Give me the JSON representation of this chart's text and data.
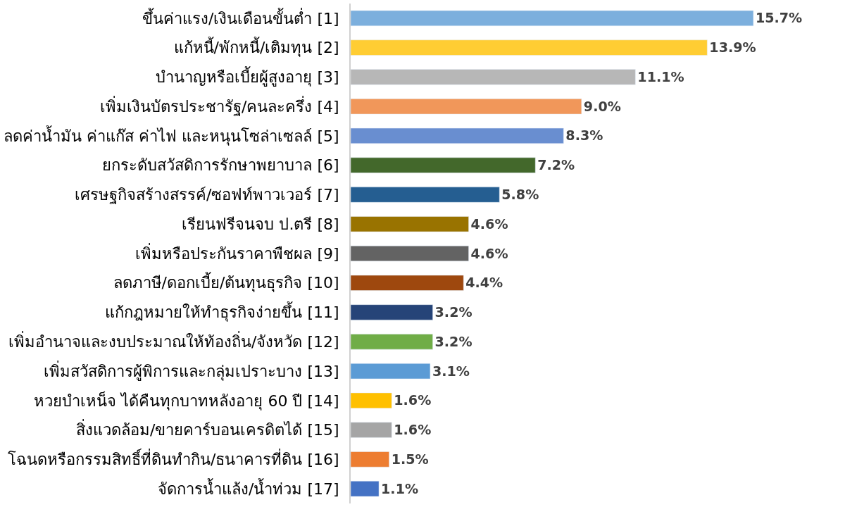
{
  "chart_data": {
    "type": "bar",
    "orientation": "horizontal",
    "tick_labels": "y",
    "legend": false,
    "categories": [
      "ขึ้นค่าแรง/เงินเดือนขั้นต่ำ [1]",
      "แก้หนี้/พักหนี้/เติมทุน [2]",
      "บำนาญหรือเบี้ยผู้สูงอายุ [3]",
      "เพิ่มเงินบัตรประชารัฐ/คนละครึ่ง [4]",
      "ลดค่าน้ำมัน ค่าแก๊ส ค่าไฟ และหนุนโซล่าเซลล์ [5]",
      "ยกระดับสวัสดิการรักษาพยาบาล [6]",
      "เศรษฐกิจสร้างสรรค์/ซอฟท์พาวเวอร์ [7]",
      "เรียนฟรีจนจบ ป.ตรี [8]",
      "เพิ่มหรือประกันราคาพืชผล [9]",
      "ลดภาษี/ดอกเบี้ย/ต้นทุนธุรกิจ [10]",
      "แก้กฎหมายให้ทำธุรกิจง่ายขึ้น [11]",
      "เพิ่มอำนาจและงบประมาณให้ท้องถิ่น/จังหวัด [12]",
      "เพิ่มสวัสดิการผู้พิการและกลุ่มเปราะบาง [13]",
      "หวยบำเหน็จ ได้คืนทุกบาทหลังอายุ 60 ปี [14]",
      "สิ่งแวดล้อม/ขายคาร์บอนเครดิตได้ [15]",
      "โฉนดหรือกรรมสิทธิ์ที่ดินทำกิน/ธนาคารที่ดิน [16]",
      "จัดการน้ำแล้ง/น้ำท่วม [17]"
    ],
    "values": [
      15.7,
      13.9,
      11.1,
      9.0,
      8.3,
      7.2,
      5.8,
      4.6,
      4.6,
      4.4,
      3.2,
      3.2,
      3.1,
      1.6,
      1.6,
      1.5,
      1.1
    ],
    "value_labels": [
      "15.7%",
      "13.9%",
      "11.1%",
      "9.0%",
      "8.3%",
      "7.2%",
      "5.8%",
      "4.6%",
      "4.6%",
      "4.4%",
      "3.2%",
      "3.2%",
      "3.1%",
      "1.6%",
      "1.6%",
      "1.5%",
      "1.1%"
    ],
    "colors": [
      "#7cafdd",
      "#ffcd33",
      "#b7b7b7",
      "#f1975a",
      "#698ed0",
      "#43682b",
      "#255e91",
      "#997300",
      "#636363",
      "#9e480e",
      "#264478",
      "#70ad47",
      "#5b9bd5",
      "#ffc000",
      "#a5a5a5",
      "#ed7d31",
      "#4472c4"
    ]
  }
}
